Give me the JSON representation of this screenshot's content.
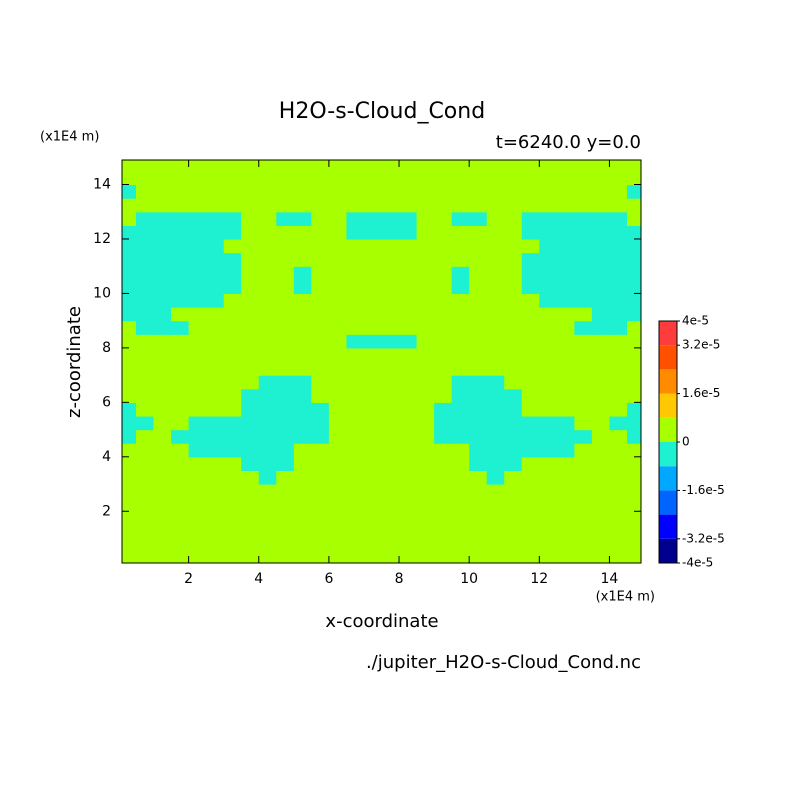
{
  "chart_data": {
    "type": "heatmap",
    "title": "H2O-s-Cloud_Cond",
    "subtitle": "t=6240.0 y=0.0",
    "x_label": "x-coordinate",
    "y_label": "z-coordinate",
    "x_unit": "(x1E4 m)",
    "y_unit": "(x1E4 m)",
    "footer": "./jupiter_H2O-s-Cloud_Cond.nc",
    "xlim": [
      0.1,
      14.9
    ],
    "ylim": [
      0.1,
      14.9
    ],
    "xticks": [
      2,
      4,
      6,
      8,
      10,
      12,
      14
    ],
    "yticks": [
      2,
      4,
      6,
      8,
      10,
      12,
      14
    ],
    "x": [
      0.25,
      0.75,
      1.25,
      1.75,
      2.25,
      2.75,
      3.25,
      3.75,
      4.25,
      4.75,
      5.25,
      5.75,
      6.25,
      6.75,
      7.25,
      7.75,
      8.25,
      8.75,
      9.25,
      9.75,
      10.25,
      10.75,
      11.25,
      11.75,
      12.25,
      12.75,
      13.25,
      13.75,
      14.25,
      14.75
    ],
    "y": [
      0.25,
      0.75,
      1.25,
      1.75,
      2.25,
      2.75,
      3.25,
      3.75,
      4.25,
      4.75,
      5.25,
      5.75,
      6.25,
      6.75,
      7.25,
      7.75,
      8.25,
      8.75,
      9.25,
      9.75,
      10.25,
      10.75,
      11.25,
      11.75,
      12.25,
      12.75,
      13.25,
      13.75,
      14.25,
      14.75
    ],
    "z": [
      [
        0,
        0,
        0,
        0,
        0,
        0,
        0,
        0,
        0,
        0,
        0,
        0,
        0,
        0,
        0,
        0,
        0,
        0,
        0,
        0,
        0,
        0,
        0,
        0,
        0,
        0,
        0,
        0,
        0,
        0
      ],
      [
        0,
        0,
        0,
        0,
        0,
        0,
        0,
        0,
        0,
        0,
        0,
        0,
        0,
        0,
        0,
        0,
        0,
        0,
        0,
        0,
        0,
        0,
        0,
        0,
        0,
        0,
        0,
        0,
        0,
        0
      ],
      [
        0,
        0,
        0,
        0,
        0,
        0,
        0,
        0,
        0,
        0,
        0,
        0,
        0,
        0,
        0,
        0,
        0,
        0,
        0,
        0,
        0,
        0,
        0,
        0,
        0,
        0,
        0,
        0,
        0,
        0
      ],
      [
        0,
        0,
        0,
        0,
        0,
        0,
        0,
        0,
        0,
        0,
        0,
        0,
        0,
        0,
        0,
        0,
        0,
        0,
        0,
        0,
        0,
        0,
        0,
        0,
        0,
        0,
        0,
        0,
        0,
        0
      ],
      [
        0,
        0,
        0,
        0,
        0,
        0,
        0,
        0,
        0,
        0,
        0,
        0,
        0,
        0,
        0,
        0,
        0,
        0,
        0,
        0,
        0,
        0,
        0,
        0,
        0,
        0,
        0,
        0,
        0,
        0
      ],
      [
        0,
        0,
        0,
        0,
        0,
        0,
        0,
        0,
        0,
        0,
        0,
        0,
        0,
        0,
        0,
        0,
        0,
        0,
        0,
        0,
        0,
        0,
        0,
        0,
        0,
        0,
        0,
        0,
        0,
        0
      ],
      [
        0,
        0,
        0,
        0,
        0,
        0,
        0,
        0,
        -4e-06,
        0,
        0,
        0,
        0,
        0,
        0,
        0,
        0,
        0,
        0,
        0,
        0,
        -4e-06,
        0,
        0,
        0,
        0,
        0,
        0,
        0,
        0
      ],
      [
        0,
        0,
        0,
        0,
        0,
        0,
        0,
        -4e-06,
        -4e-06,
        -4e-06,
        0,
        0,
        0,
        0,
        0,
        0,
        0,
        0,
        0,
        0,
        -4e-06,
        -4e-06,
        -4e-06,
        0,
        0,
        0,
        0,
        0,
        0,
        0
      ],
      [
        0,
        0,
        0,
        0,
        -4e-06,
        -4e-06,
        -4e-06,
        -4e-06,
        -4e-06,
        -4e-06,
        0,
        0,
        0,
        0,
        0,
        0,
        0,
        0,
        0,
        0,
        -4e-06,
        -4e-06,
        -4e-06,
        -4e-06,
        -4e-06,
        -4e-06,
        0,
        0,
        0,
        0
      ],
      [
        -4e-06,
        0,
        0,
        -4e-06,
        -4e-06,
        -4e-06,
        -4e-06,
        -4e-06,
        -4e-06,
        -4e-06,
        -4e-06,
        -4e-06,
        0,
        0,
        0,
        0,
        0,
        0,
        -4e-06,
        -4e-06,
        -4e-06,
        -4e-06,
        -4e-06,
        -4e-06,
        -4e-06,
        -4e-06,
        -4e-06,
        0,
        0,
        -4e-06
      ],
      [
        -4e-06,
        -4e-06,
        0,
        0,
        -4e-06,
        -4e-06,
        -4e-06,
        -4e-06,
        -4e-06,
        -4e-06,
        -4e-06,
        -4e-06,
        0,
        0,
        0,
        0,
        0,
        0,
        -4e-06,
        -4e-06,
        -4e-06,
        -4e-06,
        -4e-06,
        -4e-06,
        -4e-06,
        -4e-06,
        0,
        0,
        -4e-06,
        -4e-06
      ],
      [
        -4e-06,
        0,
        0,
        0,
        0,
        0,
        0,
        -4e-06,
        -4e-06,
        -4e-06,
        -4e-06,
        -4e-06,
        0,
        0,
        0,
        0,
        0,
        0,
        -4e-06,
        -4e-06,
        -4e-06,
        -4e-06,
        -4e-06,
        0,
        0,
        0,
        0,
        0,
        0,
        -4e-06
      ],
      [
        0,
        0,
        0,
        0,
        0,
        0,
        0,
        -4e-06,
        -4e-06,
        -4e-06,
        -4e-06,
        0,
        0,
        0,
        0,
        0,
        0,
        0,
        0,
        -4e-06,
        -4e-06,
        -4e-06,
        -4e-06,
        0,
        0,
        0,
        0,
        0,
        0,
        0
      ],
      [
        0,
        0,
        0,
        0,
        0,
        0,
        0,
        0,
        -4e-06,
        -4e-06,
        -4e-06,
        0,
        0,
        0,
        0,
        0,
        0,
        0,
        0,
        -4e-06,
        -4e-06,
        -4e-06,
        0,
        0,
        0,
        0,
        0,
        0,
        0,
        0
      ],
      [
        0,
        0,
        0,
        0,
        0,
        0,
        0,
        0,
        0,
        0,
        0,
        0,
        0,
        0,
        0,
        0,
        0,
        0,
        0,
        0,
        0,
        0,
        0,
        0,
        0,
        0,
        0,
        0,
        0,
        0
      ],
      [
        0,
        0,
        0,
        0,
        0,
        0,
        0,
        0,
        0,
        0,
        0,
        0,
        0,
        0,
        0,
        0,
        0,
        0,
        0,
        0,
        0,
        0,
        0,
        0,
        0,
        0,
        0,
        0,
        0,
        0
      ],
      [
        0,
        0,
        0,
        0,
        0,
        0,
        0,
        0,
        0,
        0,
        0,
        0,
        0,
        -4e-06,
        -4e-06,
        -4e-06,
        -4e-06,
        0,
        0,
        0,
        0,
        0,
        0,
        0,
        0,
        0,
        0,
        0,
        0,
        0
      ],
      [
        0,
        -4e-06,
        -4e-06,
        -4e-06,
        0,
        0,
        0,
        0,
        0,
        0,
        0,
        0,
        0,
        0,
        0,
        0,
        0,
        0,
        0,
        0,
        0,
        0,
        0,
        0,
        0,
        0,
        -4e-06,
        -4e-06,
        -4e-06,
        0
      ],
      [
        -4e-06,
        -4e-06,
        -4e-06,
        0,
        0,
        0,
        0,
        0,
        0,
        0,
        0,
        0,
        0,
        0,
        0,
        0,
        0,
        0,
        0,
        0,
        0,
        0,
        0,
        0,
        0,
        0,
        0,
        -4e-06,
        -4e-06,
        -4e-06
      ],
      [
        -4e-06,
        -4e-06,
        -4e-06,
        -4e-06,
        -4e-06,
        -4e-06,
        0,
        0,
        0,
        0,
        0,
        0,
        0,
        0,
        0,
        0,
        0,
        0,
        0,
        0,
        0,
        0,
        0,
        0,
        -4e-06,
        -4e-06,
        -4e-06,
        -4e-06,
        -4e-06,
        -4e-06
      ],
      [
        -4e-06,
        -4e-06,
        -4e-06,
        -4e-06,
        -4e-06,
        -4e-06,
        -4e-06,
        0,
        0,
        0,
        -4e-06,
        0,
        0,
        0,
        0,
        0,
        0,
        0,
        0,
        -4e-06,
        0,
        0,
        0,
        -4e-06,
        -4e-06,
        -4e-06,
        -4e-06,
        -4e-06,
        -4e-06,
        -4e-06
      ],
      [
        -4e-06,
        -4e-06,
        -4e-06,
        -4e-06,
        -4e-06,
        -4e-06,
        -4e-06,
        0,
        0,
        0,
        -4e-06,
        0,
        0,
        0,
        0,
        0,
        0,
        0,
        0,
        -4e-06,
        0,
        0,
        0,
        -4e-06,
        -4e-06,
        -4e-06,
        -4e-06,
        -4e-06,
        -4e-06,
        -4e-06
      ],
      [
        -4e-06,
        -4e-06,
        -4e-06,
        -4e-06,
        -4e-06,
        -4e-06,
        -4e-06,
        0,
        0,
        0,
        0,
        0,
        0,
        0,
        0,
        0,
        0,
        0,
        0,
        0,
        0,
        0,
        0,
        -4e-06,
        -4e-06,
        -4e-06,
        -4e-06,
        -4e-06,
        -4e-06,
        -4e-06
      ],
      [
        -4e-06,
        -4e-06,
        -4e-06,
        -4e-06,
        -4e-06,
        -4e-06,
        0,
        0,
        0,
        0,
        0,
        0,
        0,
        0,
        0,
        0,
        0,
        0,
        0,
        0,
        0,
        0,
        0,
        0,
        -4e-06,
        -4e-06,
        -4e-06,
        -4e-06,
        -4e-06,
        -4e-06
      ],
      [
        -4e-06,
        -4e-06,
        -4e-06,
        -4e-06,
        -4e-06,
        -4e-06,
        -4e-06,
        0,
        0,
        0,
        0,
        0,
        0,
        -4e-06,
        -4e-06,
        -4e-06,
        -4e-06,
        0,
        0,
        0,
        0,
        0,
        0,
        -4e-06,
        -4e-06,
        -4e-06,
        -4e-06,
        -4e-06,
        -4e-06,
        -4e-06
      ],
      [
        0,
        -4e-06,
        -4e-06,
        -4e-06,
        -4e-06,
        -4e-06,
        -4e-06,
        0,
        0,
        -4e-06,
        -4e-06,
        0,
        0,
        -4e-06,
        -4e-06,
        -4e-06,
        -4e-06,
        0,
        0,
        -4e-06,
        -4e-06,
        0,
        0,
        -4e-06,
        -4e-06,
        -4e-06,
        -4e-06,
        -4e-06,
        -4e-06,
        0
      ],
      [
        0,
        0,
        0,
        0,
        0,
        0,
        0,
        0,
        0,
        0,
        0,
        0,
        0,
        0,
        0,
        0,
        0,
        0,
        0,
        0,
        0,
        0,
        0,
        0,
        0,
        0,
        0,
        0,
        0,
        0
      ],
      [
        -4e-06,
        0,
        0,
        0,
        0,
        0,
        0,
        0,
        0,
        0,
        0,
        0,
        0,
        0,
        0,
        0,
        0,
        0,
        0,
        0,
        0,
        0,
        0,
        0,
        0,
        0,
        0,
        0,
        0,
        -4e-06
      ],
      [
        0,
        0,
        0,
        0,
        0,
        0,
        0,
        0,
        0,
        0,
        0,
        0,
        0,
        0,
        0,
        0,
        0,
        0,
        0,
        0,
        0,
        0,
        0,
        0,
        0,
        0,
        0,
        0,
        0,
        0
      ],
      [
        0,
        0,
        0,
        0,
        0,
        0,
        0,
        0,
        0,
        0,
        0,
        0,
        0,
        0,
        0,
        0,
        0,
        0,
        0,
        0,
        0,
        0,
        0,
        0,
        0,
        0,
        0,
        0,
        0,
        0
      ]
    ],
    "colorbar": {
      "levels": [
        -4e-05,
        -3.2e-05,
        -2.4e-05,
        -1.6e-05,
        -8e-06,
        0,
        8e-06,
        1.6e-05,
        2.4e-05,
        3.2e-05,
        4e-05
      ],
      "colors": [
        "#00008f",
        "#0000ff",
        "#0064ff",
        "#00a8ff",
        "#1ef0d2",
        "#a8ff00",
        "#ffc800",
        "#ff8c00",
        "#ff5000",
        "#ff3c3c"
      ],
      "ticks": [
        {
          "value": 4e-05,
          "label": "4e-5"
        },
        {
          "value": 3.2e-05,
          "label": "3.2e-5"
        },
        {
          "value": 1.6e-05,
          "label": "1.6e-5"
        },
        0,
        {
          "value": -1.6e-05,
          "label": "-1.6e-5"
        },
        {
          "value": -3.2e-05,
          "label": "-3.2e-5"
        },
        {
          "value": -4e-05,
          "label": "-4e-5"
        }
      ]
    }
  }
}
